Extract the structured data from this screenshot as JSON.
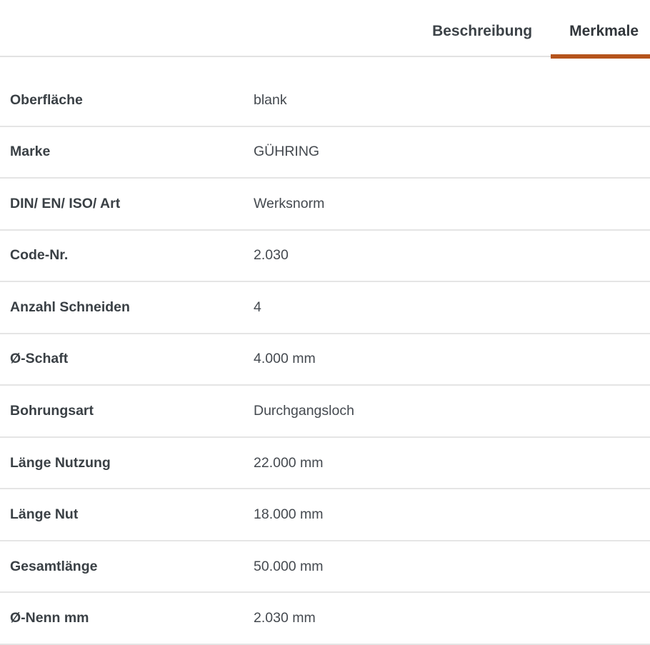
{
  "tabs": [
    {
      "label": "Beschreibung",
      "active": false
    },
    {
      "label": "Merkmale",
      "active": true
    }
  ],
  "table": {
    "rows": [
      {
        "label": "Oberfläche",
        "value": "blank"
      },
      {
        "label": "Marke",
        "value": "GÜHRING"
      },
      {
        "label": "DIN/ EN/ ISO/ Art",
        "value": "Werksnorm"
      },
      {
        "label": "Code-Nr.",
        "value": "2.030"
      },
      {
        "label": "Anzahl Schneiden",
        "value": "4"
      },
      {
        "label": "Ø-Schaft",
        "value": "4.000 mm"
      },
      {
        "label": "Bohrungsart",
        "value": "Durchgangsloch"
      },
      {
        "label": "Länge Nutzung",
        "value": "22.000 mm"
      },
      {
        "label": "Länge Nut",
        "value": "18.000 mm"
      },
      {
        "label": "Gesamtlänge",
        "value": "50.000 mm"
      },
      {
        "label": "Ø-Nenn mm",
        "value": "2.030 mm"
      }
    ]
  },
  "colors": {
    "accent": "#b5541c",
    "divider": "#e5e5e5",
    "label_text": "#3a4045",
    "value_text": "#44494f",
    "tab_text": "#3c4247",
    "background": "#ffffff"
  }
}
